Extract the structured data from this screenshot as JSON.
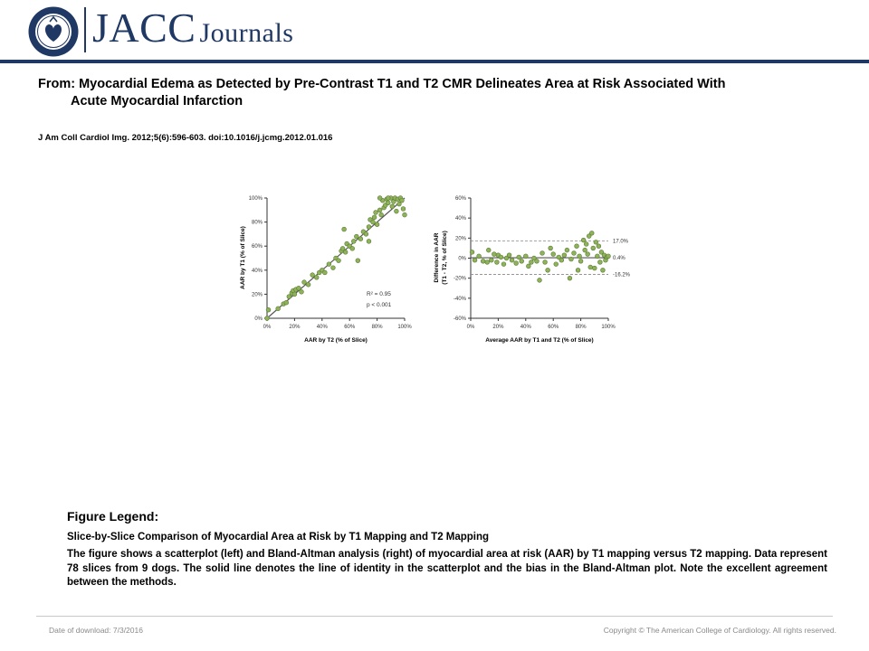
{
  "header": {
    "seal_text": "AMERICAN COLLEGE OF CARDIOLOGY",
    "brand_name": "JACC",
    "brand_suffix": "Journals"
  },
  "citation": {
    "title_line1": "From: Myocardial Edema as Detected by Pre-Contrast T1 and T2 CMR Delineates Area at Risk Associated With",
    "title_line2": "Acute Myocardial Infarction",
    "reference": "J Am Coll Cardiol Img. 2012;5(6):596-603. doi:10.1016/j.jcmg.2012.01.016"
  },
  "chart_data": [
    {
      "type": "scatter",
      "xlabel": "AAR by T2 (% of Slice)",
      "ylabel": "AAR by T1 (% of Slice)",
      "xlim": [
        0,
        100
      ],
      "ylim": [
        0,
        100
      ],
      "x_ticks": [
        "0%",
        "20%",
        "40%",
        "60%",
        "80%",
        "100%"
      ],
      "y_ticks": [
        "0%",
        "20%",
        "40%",
        "60%",
        "80%",
        "100%"
      ],
      "annotation_r2": "R² = 0.95",
      "annotation_p": "p < 0.001",
      "identity_line": [
        [
          0,
          0
        ],
        [
          100,
          100
        ]
      ],
      "marker_color": "#8fb35a",
      "points": [
        [
          0,
          0
        ],
        [
          1,
          7
        ],
        [
          8,
          8
        ],
        [
          12,
          12
        ],
        [
          14,
          13
        ],
        [
          16,
          18
        ],
        [
          18,
          21
        ],
        [
          19,
          23
        ],
        [
          20,
          20
        ],
        [
          21,
          24
        ],
        [
          23,
          25
        ],
        [
          25,
          22
        ],
        [
          27,
          30
        ],
        [
          30,
          28
        ],
        [
          33,
          36
        ],
        [
          36,
          34
        ],
        [
          38,
          38
        ],
        [
          40,
          40
        ],
        [
          42,
          38
        ],
        [
          45,
          45
        ],
        [
          48,
          42
        ],
        [
          50,
          50
        ],
        [
          52,
          48
        ],
        [
          54,
          56
        ],
        [
          55,
          58
        ],
        [
          57,
          55
        ],
        [
          58,
          62
        ],
        [
          60,
          60
        ],
        [
          62,
          58
        ],
        [
          63,
          64
        ],
        [
          65,
          68
        ],
        [
          68,
          66
        ],
        [
          70,
          72
        ],
        [
          72,
          70
        ],
        [
          74,
          76
        ],
        [
          75,
          82
        ],
        [
          77,
          80
        ],
        [
          78,
          84
        ],
        [
          79,
          88
        ],
        [
          80,
          78
        ],
        [
          82,
          90
        ],
        [
          83,
          86
        ],
        [
          84,
          98
        ],
        [
          85,
          92
        ],
        [
          86,
          94
        ],
        [
          87,
          99
        ],
        [
          88,
          96
        ],
        [
          90,
          100
        ],
        [
          91,
          93
        ],
        [
          92,
          97
        ],
        [
          93,
          100
        ],
        [
          94,
          89
        ],
        [
          95,
          99
        ],
        [
          96,
          95
        ],
        [
          97,
          100
        ],
        [
          98,
          98
        ],
        [
          99,
          91
        ],
        [
          100,
          86
        ],
        [
          66,
          48
        ],
        [
          56,
          74
        ],
        [
          74,
          64
        ],
        [
          82,
          100
        ],
        [
          88,
          100
        ]
      ]
    },
    {
      "type": "scatter",
      "xlabel": "Average AAR by T1 and T2 (% of Slice)",
      "ylabel_line1": "Difference in AAR",
      "ylabel_line2": "(T1 - T2, % of Slice)",
      "xlim": [
        0,
        100
      ],
      "ylim": [
        -60,
        60
      ],
      "x_ticks": [
        "0%",
        "20%",
        "40%",
        "60%",
        "80%",
        "100%"
      ],
      "y_ticks": [
        "-60%",
        "-40%",
        "-20%",
        "0%",
        "20%",
        "40%",
        "60%"
      ],
      "bias": 0.4,
      "upper_loa": 17.0,
      "lower_loa": -16.2,
      "bias_label": "0.4%",
      "upper_label": "17.0%",
      "lower_label": "-16.2%",
      "marker_color": "#8fb35a",
      "points": [
        [
          1,
          6
        ],
        [
          3,
          -2
        ],
        [
          6,
          2
        ],
        [
          9,
          -3
        ],
        [
          12,
          -4
        ],
        [
          13,
          8
        ],
        [
          15,
          -2
        ],
        [
          17,
          4
        ],
        [
          19,
          -4
        ],
        [
          20,
          3
        ],
        [
          22,
          1
        ],
        [
          24,
          -6
        ],
        [
          26,
          0
        ],
        [
          28,
          3
        ],
        [
          30,
          -2
        ],
        [
          33,
          -5
        ],
        [
          35,
          1
        ],
        [
          37,
          -3
        ],
        [
          40,
          2
        ],
        [
          42,
          -8
        ],
        [
          44,
          -4
        ],
        [
          46,
          0
        ],
        [
          48,
          -3
        ],
        [
          50,
          -22
        ],
        [
          52,
          5
        ],
        [
          54,
          -4
        ],
        [
          56,
          -12
        ],
        [
          58,
          10
        ],
        [
          60,
          4
        ],
        [
          62,
          -6
        ],
        [
          64,
          1
        ],
        [
          66,
          -2
        ],
        [
          68,
          3
        ],
        [
          70,
          8
        ],
        [
          72,
          -20
        ],
        [
          73,
          -1
        ],
        [
          75,
          5
        ],
        [
          77,
          12
        ],
        [
          78,
          -12
        ],
        [
          79,
          2
        ],
        [
          80,
          -3
        ],
        [
          82,
          18
        ],
        [
          83,
          8
        ],
        [
          84,
          14
        ],
        [
          85,
          4
        ],
        [
          86,
          22
        ],
        [
          87,
          -9
        ],
        [
          88,
          25
        ],
        [
          89,
          10
        ],
        [
          90,
          -10
        ],
        [
          91,
          16
        ],
        [
          92,
          2
        ],
        [
          93,
          12
        ],
        [
          94,
          -4
        ],
        [
          95,
          6
        ],
        [
          96,
          -12
        ],
        [
          97,
          3
        ],
        [
          98,
          -2
        ],
        [
          99,
          1
        ],
        [
          100,
          2
        ]
      ]
    }
  ],
  "legend": {
    "heading": "Figure Legend:",
    "title": "Slice-by-Slice Comparison of Myocardial Area at Risk by T1 Mapping and T2 Mapping",
    "body": "The figure shows a scatterplot (left) and Bland-Altman analysis (right) of myocardial area at risk (AAR) by T1 mapping versus T2 mapping. Data represent 78 slices from 9 dogs. The solid line denotes the line of identity in the scatterplot and the bias in the Bland-Altman plot. Note the excellent agreement between the methods."
  },
  "footer": {
    "date": "Date of download: 7/3/2016",
    "copyright": "Copyright © The American College of Cardiology. All rights reserved."
  }
}
